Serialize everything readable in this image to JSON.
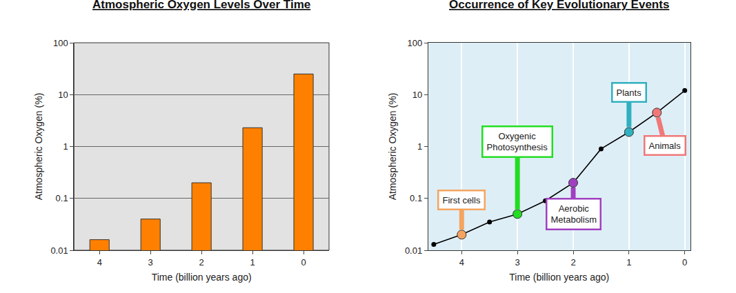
{
  "chart_data": [
    {
      "type": "bar",
      "title": "Atmospheric Oxygen Levels Over Time",
      "x_label": "Time (billion years ago)",
      "y_label": "Atmospheric Oxygen (%)",
      "categories": [
        "4",
        "3",
        "2",
        "1",
        "0"
      ],
      "values": [
        0.016,
        0.04,
        0.2,
        2.3,
        25
      ],
      "color": "#ff8000",
      "log": "y",
      "ylim": [
        0.01,
        100
      ],
      "yticks": [
        0.01,
        0.1,
        1,
        10,
        100
      ],
      "grid": "y"
    },
    {
      "type": "line",
      "title": "Occurrence of Key Evolutionary Events",
      "x_label": "Time (billion years ago)",
      "y_label": "Atmospheric Oxygen (%)",
      "x": [
        4.5,
        4,
        3.5,
        3,
        2.5,
        2,
        1.5,
        1,
        0.5,
        0
      ],
      "values": [
        0.013,
        0.02,
        0.035,
        0.05,
        0.09,
        0.2,
        0.9,
        1.9,
        4.5,
        12
      ],
      "color": "#000000",
      "marker": "circle",
      "log": "y",
      "xlim": [
        4.6,
        -0.1
      ],
      "xticks": [
        4,
        3,
        2,
        1,
        0
      ],
      "ylim": [
        0.01,
        100
      ],
      "yticks": [
        0.01,
        0.1,
        1,
        10,
        100
      ],
      "grid": "x",
      "annotations": [
        {
          "text": "First cells",
          "x": 4,
          "y": 0.02,
          "color": "#f5a460"
        },
        {
          "text": "Oxygenic Photosynthesis",
          "x": 3,
          "y": 0.05,
          "color": "#22dd22"
        },
        {
          "text": "Aerobic Metabolism",
          "x": 2,
          "y": 0.2,
          "color": "#a040c0"
        },
        {
          "text": "Plants",
          "x": 1,
          "y": 1.9,
          "color": "#30b0c0"
        },
        {
          "text": "Animals",
          "x": 0.5,
          "y": 4.5,
          "color": "#f07878"
        }
      ]
    }
  ]
}
